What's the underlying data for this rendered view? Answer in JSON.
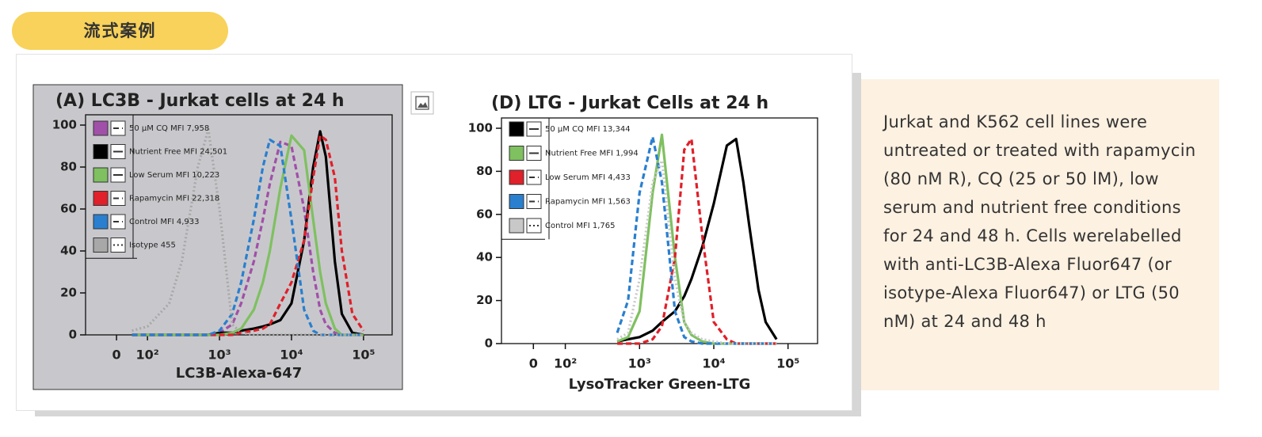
{
  "header": {
    "tag": "流式案例"
  },
  "chart_data": [
    {
      "type": "line",
      "title": "(A) LC3B - Jurkat cells at 24 h",
      "xlabel": "LC3B-Alexa-647",
      "xscale": "biexponential",
      "background": "#c8c8cc",
      "x": [
        50,
        100,
        200,
        300,
        500,
        700,
        1000,
        1500,
        2000,
        3000,
        4000,
        5000,
        7000,
        10000,
        15000,
        20000,
        25000,
        30000,
        40000,
        50000,
        70000,
        100000
      ],
      "xlim": [
        -100,
        250000
      ],
      "xticks": [
        0,
        {
          "value": 100,
          "label": "10²"
        },
        {
          "value": 1000,
          "label": "10³"
        },
        {
          "value": 10000,
          "label": "10⁴"
        },
        {
          "value": 100000,
          "label": "10⁵"
        }
      ],
      "ylim": [
        0,
        100
      ],
      "yticks": [
        0,
        20,
        40,
        60,
        80,
        100
      ],
      "series": [
        {
          "name": "50 µM CQ  MFI 7,958",
          "color": "#a050a8",
          "style": "dashed",
          "values": [
            0,
            0,
            0,
            0,
            0,
            0,
            1,
            5,
            15,
            35,
            55,
            72,
            92,
            90,
            60,
            30,
            12,
            5,
            1,
            0,
            0,
            0
          ]
        },
        {
          "name": "Nutrient Free  MFI 24,501",
          "color": "#000000",
          "style": "solid",
          "values": [
            0,
            0,
            0,
            0,
            0,
            0,
            1,
            1,
            2,
            3,
            4,
            5,
            7,
            15,
            45,
            80,
            97,
            85,
            35,
            10,
            1,
            0
          ]
        },
        {
          "name": "Low Serum  MFI 10,223",
          "color": "#7fc060",
          "style": "solid",
          "values": [
            0,
            0,
            0,
            0,
            0,
            0,
            0,
            1,
            3,
            12,
            25,
            40,
            70,
            95,
            88,
            55,
            30,
            15,
            3,
            0,
            0,
            0
          ]
        },
        {
          "name": "Rapamycin   MFI 22,318",
          "color": "#e0202a",
          "style": "dashed",
          "values": [
            0,
            0,
            0,
            0,
            0,
            0,
            0,
            0,
            1,
            2,
            3,
            5,
            15,
            25,
            45,
            75,
            95,
            93,
            75,
            40,
            10,
            2
          ]
        },
        {
          "name": "Control  MFI 4,933",
          "color": "#2a7fcf",
          "style": "dashed",
          "values": [
            0,
            0,
            0,
            0,
            0,
            0,
            2,
            10,
            25,
            55,
            80,
            93,
            90,
            55,
            12,
            2,
            0,
            0,
            0,
            0,
            0,
            0
          ]
        },
        {
          "name": "Isotype  455",
          "color": "#a8a8a8",
          "style": "dotted",
          "values": [
            2,
            4,
            15,
            35,
            80,
            98,
            60,
            5,
            1,
            0,
            0,
            0,
            0,
            0,
            0,
            0,
            0,
            0,
            0,
            0,
            0,
            0
          ]
        }
      ]
    },
    {
      "type": "line",
      "title": "(D) LTG  - Jurkat  Cells at 24 h",
      "xlabel": "LysoTracker Green-LTG",
      "xscale": "biexponential",
      "background": "#ffffff",
      "x": [
        500,
        700,
        1000,
        1500,
        2000,
        3000,
        4000,
        5000,
        7000,
        10000,
        15000,
        20000,
        25000,
        30000,
        40000,
        50000,
        70000
      ],
      "xlim": [
        -100,
        250000
      ],
      "xticks": [
        0,
        {
          "value": 100,
          "label": "10²"
        },
        {
          "value": 1000,
          "label": "10³"
        },
        {
          "value": 10000,
          "label": "10⁴"
        },
        {
          "value": 100000,
          "label": "10⁵"
        }
      ],
      "ylim": [
        0,
        100
      ],
      "yticks": [
        0,
        20,
        40,
        60,
        80,
        100
      ],
      "series": [
        {
          "name": "50 µM CQ  MFI 13,344",
          "color": "#000000",
          "style": "solid",
          "values": [
            1,
            2,
            3,
            6,
            10,
            15,
            22,
            30,
            45,
            65,
            92,
            95,
            75,
            55,
            25,
            10,
            2
          ]
        },
        {
          "name": "Nutrient Free  MFI 1,994",
          "color": "#7fc060",
          "style": "solid",
          "values": [
            1,
            3,
            15,
            70,
            97,
            40,
            10,
            4,
            1,
            0,
            0,
            0,
            0,
            0,
            0,
            0,
            0
          ]
        },
        {
          "name": "Low Serum  MFI 4,433",
          "color": "#e0202a",
          "style": "dashed",
          "values": [
            0,
            0,
            0,
            2,
            8,
            40,
            90,
            95,
            50,
            10,
            2,
            0,
            0,
            0,
            0,
            0,
            0
          ]
        },
        {
          "name": "Rapamycin   MFI 1,563",
          "color": "#2a7fcf",
          "style": "dashed",
          "values": [
            5,
            20,
            70,
            96,
            75,
            15,
            3,
            1,
            0,
            0,
            0,
            0,
            0,
            0,
            0,
            0,
            0
          ]
        },
        {
          "name": "Control  MFI 1,765",
          "color": "#c8c8c8",
          "style": "dotted",
          "values": [
            2,
            5,
            30,
            75,
            85,
            30,
            10,
            5,
            2,
            1,
            0,
            0,
            0,
            0,
            0,
            0,
            0
          ]
        }
      ]
    }
  ],
  "description": "Jurkat and K562 cell lines were untreated or treated with rapamycin (80 nM R), CQ (25 or 50 lM), low serum and nutrient free conditions for 24 and 48 h. Cells werelabelled with anti-LC3B-Alexa Fluor647 (or isotype-Alexa Fluor647) or LTG (50 nM) at 24 and 48 h"
}
